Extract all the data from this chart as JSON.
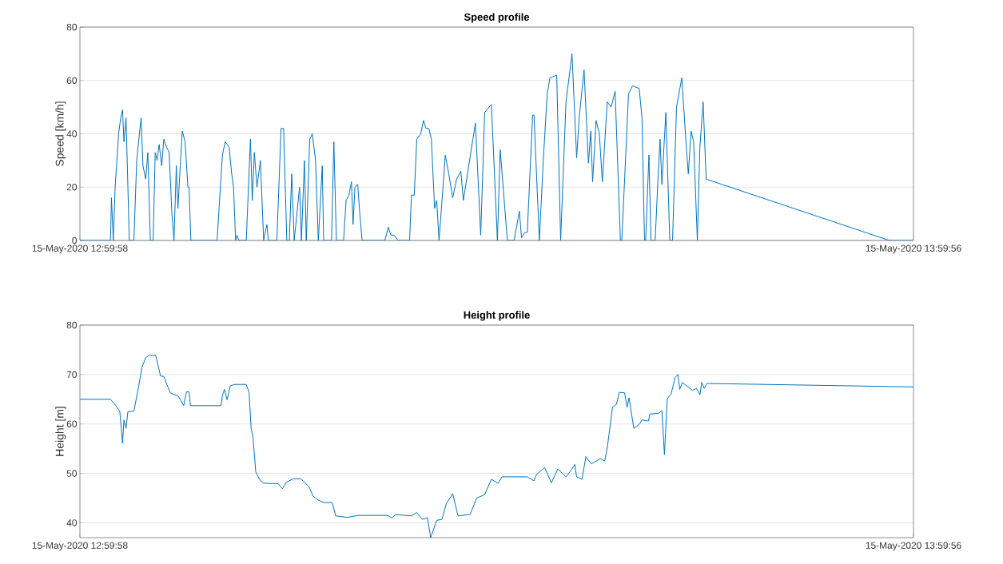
{
  "chart_data": [
    {
      "type": "line",
      "title": "Speed profile",
      "ylabel": "Speed [km/h]",
      "color": "#0072bd",
      "grid": "y",
      "xlim": [
        "2020-05-15T12:59:58",
        "2020-05-15T13:59:56"
      ],
      "ylim": [
        0,
        80
      ],
      "xticks": [
        {
          "value": "2020-05-15T12:59:58",
          "label": "15-May-2020 12:59:58"
        },
        {
          "value": "2020-05-15T13:59:56",
          "label": "15-May-2020 13:59:56"
        }
      ],
      "yticks": [
        0,
        20,
        40,
        60,
        80
      ],
      "x": [
        "2020-05-15T12:59:58",
        "2020-05-15T13:02:10",
        "2020-05-15T13:02:14",
        "2020-05-15T13:02:22",
        "2020-05-15T13:02:30",
        "2020-05-15T13:02:45",
        "2020-05-15T13:02:54",
        "2020-05-15T13:03:02",
        "2020-05-15T13:03:08",
        "2020-05-15T13:03:17",
        "2020-05-15T13:03:25",
        "2020-05-15T13:03:31",
        "2020-05-15T13:03:51",
        "2020-05-15T13:04:03",
        "2020-05-15T13:04:22",
        "2020-05-15T13:04:30",
        "2020-05-15T13:04:42",
        "2020-05-15T13:04:51",
        "2020-05-15T13:05:02",
        "2020-05-15T13:05:14",
        "2020-05-15T13:05:23",
        "2020-05-15T13:05:31",
        "2020-05-15T13:05:40",
        "2020-05-15T13:05:51",
        "2020-05-15T13:06:00",
        "2020-05-15T13:06:12",
        "2020-05-15T13:06:23",
        "2020-05-15T13:06:35",
        "2020-05-15T13:06:44",
        "2020-05-15T13:06:54",
        "2020-05-15T13:07:01",
        "2020-05-15T13:07:11",
        "2020-05-15T13:07:20",
        "2020-05-15T13:07:32",
        "2020-05-15T13:07:44",
        "2020-05-15T13:07:49",
        "2020-05-15T13:07:57",
        "2020-05-15T13:09:50",
        "2020-05-15T13:10:13",
        "2020-05-15T13:10:25",
        "2020-05-15T13:10:42",
        "2020-05-15T13:10:53",
        "2020-05-15T13:11:01",
        "2020-05-15T13:11:10",
        "2020-05-15T13:11:16",
        "2020-05-15T13:11:24",
        "2020-05-15T13:11:56",
        "2020-05-15T13:12:14",
        "2020-05-15T13:12:22",
        "2020-05-15T13:12:31",
        "2020-05-15T13:12:42",
        "2020-05-15T13:12:57",
        "2020-05-15T13:13:11",
        "2020-05-15T13:13:25",
        "2020-05-15T13:13:31",
        "2020-05-15T13:14:08",
        "2020-05-15T13:14:26",
        "2020-05-15T13:14:37",
        "2020-05-15T13:14:51",
        "2020-05-15T13:15:02",
        "2020-05-15T13:15:12",
        "2020-05-15T13:15:23",
        "2020-05-15T13:15:46",
        "2020-05-15T13:15:54",
        "2020-05-15T13:16:07",
        "2020-05-15T13:16:15",
        "2020-05-15T13:16:30",
        "2020-05-15T13:16:41",
        "2020-05-15T13:16:55",
        "2020-05-15T13:17:07",
        "2020-05-15T13:17:24",
        "2020-05-15T13:17:30",
        "2020-05-15T13:18:04",
        "2020-05-15T13:18:14",
        "2020-05-15T13:18:25",
        "2020-05-15T13:18:56",
        "2020-05-15T13:19:07",
        "2020-05-15T13:19:19",
        "2020-05-15T13:19:30",
        "2020-05-15T13:19:37",
        "2020-05-15T13:19:45",
        "2020-05-15T13:19:57",
        "2020-05-15T13:20:06",
        "2020-05-15T13:20:16",
        "2020-05-15T13:21:54",
        "2020-05-15T13:22:09",
        "2020-05-15T13:22:20",
        "2020-05-15T13:22:34",
        "2020-05-15T13:22:52",
        "2020-05-15T13:23:41",
        "2020-05-15T13:23:49",
        "2020-05-15T13:24:01",
        "2020-05-15T13:24:12",
        "2020-05-15T13:24:29",
        "2020-05-15T13:24:41",
        "2020-05-15T13:24:52",
        "2020-05-15T13:25:04",
        "2020-05-15T13:25:15",
        "2020-05-15T13:25:29",
        "2020-05-15T13:25:38",
        "2020-05-15T13:25:48",
        "2020-05-15T13:26:01",
        "2020-05-15T13:26:15",
        "2020-05-15T13:26:30",
        "2020-05-15T13:26:47",
        "2020-05-15T13:27:04",
        "2020-05-15T13:27:22",
        "2020-05-15T13:27:33",
        "2020-05-15T13:28:25",
        "2020-05-15T13:28:48",
        "2020-05-15T13:29:05",
        "2020-05-15T13:29:34",
        "2020-05-15T13:30:00",
        "2020-05-15T13:30:12",
        "2020-05-15T13:30:43",
        "2020-05-15T13:31:12",
        "2020-05-15T13:31:35",
        "2020-05-15T13:31:44",
        "2020-05-15T13:31:58",
        "2020-05-15T13:32:09",
        "2020-05-15T13:32:32",
        "2020-05-15T13:32:38",
        "2020-05-15T13:33:01",
        "2020-05-15T13:33:18",
        "2020-05-15T13:33:35",
        "2020-05-15T13:33:47",
        "2020-05-15T13:34:16",
        "2020-05-15T13:34:33",
        "2020-05-15T13:34:56",
        "2020-05-15T13:35:22",
        "2020-05-15T13:35:42",
        "2020-05-15T13:35:53",
        "2020-05-15T13:36:14",
        "2020-05-15T13:36:33",
        "2020-05-15T13:36:43",
        "2020-05-15T13:36:51",
        "2020-05-15T13:37:06",
        "2020-05-15T13:37:20",
        "2020-05-15T13:37:33",
        "2020-05-15T13:37:54",
        "2020-05-15T13:38:11",
        "2020-05-15T13:38:28",
        "2020-05-15T13:38:51",
        "2020-05-15T13:38:57",
        "2020-05-15T13:39:26",
        "2020-05-15T13:39:43",
        "2020-05-15T13:40:12",
        "2020-05-15T13:40:24",
        "2020-05-15T13:40:35",
        "2020-05-15T13:40:40",
        "2020-05-15T13:40:54",
        "2020-05-15T13:41:03",
        "2020-05-15T13:41:21",
        "2020-05-15T13:41:32",
        "2020-05-15T13:41:42",
        "2020-05-15T13:41:50",
        "2020-05-15T13:42:07",
        "2020-05-15T13:42:24",
        "2020-05-15T13:42:36",
        "2020-05-15T13:42:53",
        "2020-05-15T13:43:16",
        "2020-05-15T13:43:33",
        "2020-05-15T13:43:44",
        "2020-05-15T13:43:56",
        "2020-05-15T13:44:07",
        "2020-05-15T13:44:23",
        "2020-05-15T13:44:34",
        "2020-05-15T13:44:48",
        "2020-05-15T13:45:01",
        "2020-05-15T13:58:12",
        "2020-05-15T13:59:56"
      ],
      "values": [
        0,
        0,
        16,
        0,
        20,
        40,
        46,
        49,
        37,
        46,
        20,
        0,
        0,
        30,
        46,
        28,
        23,
        33,
        0,
        0,
        33,
        30,
        36,
        28,
        38,
        35,
        33,
        10,
        0,
        28,
        12,
        28,
        41,
        37,
        20,
        20,
        0,
        0,
        32,
        37,
        35,
        25,
        20,
        0,
        2,
        0,
        0,
        38,
        15,
        33,
        20,
        30,
        0,
        6,
        0,
        0,
        42,
        42,
        0,
        0,
        25,
        0,
        20,
        0,
        30,
        0,
        38,
        40,
        30,
        0,
        28,
        0,
        0,
        37,
        0,
        0,
        15,
        17,
        22,
        6,
        20,
        21,
        10,
        0,
        0,
        5,
        2,
        2,
        0,
        0,
        17,
        17,
        38,
        40,
        45,
        42,
        42,
        38,
        12,
        15,
        0,
        15,
        32,
        25,
        16,
        23,
        26,
        15,
        44,
        2,
        48,
        51,
        0,
        34,
        0,
        0,
        11,
        1,
        3,
        3,
        47,
        47,
        0,
        30,
        55,
        61,
        62,
        0,
        52,
        70,
        31,
        46,
        64,
        29,
        41,
        22,
        45,
        40,
        22,
        52,
        50,
        56,
        0,
        0,
        55,
        58,
        57,
        46,
        0,
        0,
        32,
        0,
        0,
        21,
        38,
        21,
        48,
        0,
        0,
        50,
        61,
        38,
        25,
        41,
        37,
        0,
        35,
        52,
        23,
        0,
        0
      ]
    },
    {
      "type": "line",
      "title": "Height profile",
      "ylabel": "Height [m]",
      "color": "#0072bd",
      "grid": "y",
      "xlim": [
        "2020-05-15T12:59:58",
        "2020-05-15T13:59:56"
      ],
      "ylim": [
        37,
        80
      ],
      "xticks": [
        {
          "value": "2020-05-15T12:59:58",
          "label": "15-May-2020 12:59:58"
        },
        {
          "value": "2020-05-15T13:59:56",
          "label": "15-May-2020 13:59:56"
        }
      ],
      "yticks": [
        40,
        50,
        60,
        70,
        80
      ],
      "x": [
        "2020-05-15T12:59:58",
        "2020-05-15T13:02:10",
        "2020-05-15T13:02:33",
        "2020-05-15T13:02:50",
        "2020-05-15T13:03:02",
        "2020-05-15T13:03:08",
        "2020-05-15T13:03:17",
        "2020-05-15T13:03:25",
        "2020-05-15T13:03:51",
        "2020-05-15T13:04:11",
        "2020-05-15T13:04:26",
        "2020-05-15T13:04:42",
        "2020-05-15T13:04:57",
        "2020-05-15T13:05:25",
        "2020-05-15T13:05:37",
        "2020-05-15T13:05:46",
        "2020-05-15T13:06:00",
        "2020-05-15T13:06:28",
        "2020-05-15T13:07:03",
        "2020-05-15T13:07:26",
        "2020-05-15T13:07:38",
        "2020-05-15T13:07:49",
        "2020-05-15T13:07:55",
        "2020-05-15T13:10:07",
        "2020-05-15T13:10:13",
        "2020-05-15T13:10:22",
        "2020-05-15T13:10:33",
        "2020-05-15T13:10:47",
        "2020-05-15T13:11:05",
        "2020-05-15T13:11:56",
        "2020-05-15T13:12:08",
        "2020-05-15T13:12:17",
        "2020-05-15T13:12:25",
        "2020-05-15T13:12:37",
        "2020-05-15T13:12:54",
        "2020-05-15T13:13:11",
        "2020-05-15T13:14:14",
        "2020-05-15T13:14:32",
        "2020-05-15T13:14:49",
        "2020-05-15T13:15:18",
        "2020-05-15T13:15:52",
        "2020-05-15T13:16:27",
        "2020-05-15T13:16:44",
        "2020-05-15T13:17:07",
        "2020-05-15T13:17:30",
        "2020-05-15T13:18:07",
        "2020-05-15T13:18:22",
        "2020-05-15T13:19:13",
        "2020-05-15T13:19:59",
        "2020-05-15T13:22:06",
        "2020-05-15T13:22:23",
        "2020-05-15T13:22:40",
        "2020-05-15T13:22:57",
        "2020-05-15T13:23:49",
        "2020-05-15T13:24:12",
        "2020-05-15T13:24:35",
        "2020-05-15T13:24:58",
        "2020-05-15T13:25:12",
        "2020-05-15T13:25:38",
        "2020-05-15T13:26:01",
        "2020-05-15T13:26:19",
        "2020-05-15T13:26:47",
        "2020-05-15T13:27:10",
        "2020-05-15T13:28:02",
        "2020-05-15T13:28:31",
        "2020-05-15T13:29:05",
        "2020-05-15T13:29:34",
        "2020-05-15T13:30:03",
        "2020-05-15T13:30:20",
        "2020-05-15T13:32:09",
        "2020-05-15T13:32:38",
        "2020-05-15T13:32:49",
        "2020-05-15T13:33:24",
        "2020-05-15T13:33:53",
        "2020-05-15T13:34:21",
        "2020-05-15T13:34:56",
        "2020-05-15T13:35:19",
        "2020-05-15T13:35:34",
        "2020-05-15T13:35:42",
        "2020-05-15T13:36:05",
        "2020-05-15T13:36:22",
        "2020-05-15T13:36:45",
        "2020-05-15T13:37:25",
        "2020-05-15T13:37:43",
        "2020-05-15T13:37:54",
        "2020-05-15T13:38:17",
        "2020-05-15T13:38:34",
        "2020-05-15T13:38:46",
        "2020-05-15T13:39:09",
        "2020-05-15T13:39:20",
        "2020-05-15T13:39:28",
        "2020-05-15T13:39:49",
        "2020-05-15T13:40:12",
        "2020-05-15T13:40:24",
        "2020-05-15T13:40:52",
        "2020-05-15T13:40:58",
        "2020-05-15T13:41:38",
        "2020-05-15T13:41:50",
        "2020-05-15T13:42:01",
        "2020-05-15T13:42:13",
        "2020-05-15T13:42:30",
        "2020-05-15T13:42:47",
        "2020-05-15T13:42:59",
        "2020-05-15T13:43:07",
        "2020-05-15T13:43:18",
        "2020-05-15T13:44:02",
        "2020-05-15T13:44:19",
        "2020-05-15T13:44:34",
        "2020-05-15T13:44:42",
        "2020-05-15T13:44:53",
        "2020-05-15T13:45:05",
        "2020-05-15T13:59:56"
      ],
      "values": [
        65,
        65,
        63.7,
        62.6,
        56.1,
        60.8,
        59.1,
        62.5,
        62.6,
        67.5,
        71.5,
        73.4,
        73.9,
        73.9,
        71.5,
        69.7,
        69.6,
        66.3,
        65.6,
        63.7,
        66.5,
        66.5,
        63.7,
        63.7,
        65.8,
        67.0,
        64.9,
        67.7,
        68.0,
        68.0,
        66.4,
        59.1,
        57.3,
        50.3,
        48.7,
        48.0,
        47.9,
        46.9,
        48.2,
        48.9,
        48.9,
        47.3,
        45.4,
        44.6,
        44.1,
        44.1,
        41.4,
        41.1,
        41.5,
        41.5,
        41.0,
        41.6,
        41.6,
        41.4,
        42.1,
        40.7,
        41.0,
        37,
        40.5,
        40.7,
        43.8,
        45.9,
        41.4,
        41.7,
        45.0,
        45.7,
        48.8,
        48.0,
        49.3,
        49.3,
        48.5,
        49.8,
        51.2,
        48.1,
        50.9,
        49.3,
        50.7,
        51.8,
        49.3,
        48.8,
        53.4,
        51.9,
        53.0,
        52.5,
        55.1,
        63.4,
        64.0,
        66.4,
        66.3,
        63.4,
        65.3,
        59.1,
        59.9,
        60.8,
        60.6,
        62.0,
        62.2,
        62.7,
        53.8,
        65.1,
        66.1,
        69.4,
        70.0,
        67.0,
        68.4,
        66.8,
        67.2,
        65.9,
        68.4,
        67.2,
        68.2,
        67.5
      ]
    }
  ]
}
